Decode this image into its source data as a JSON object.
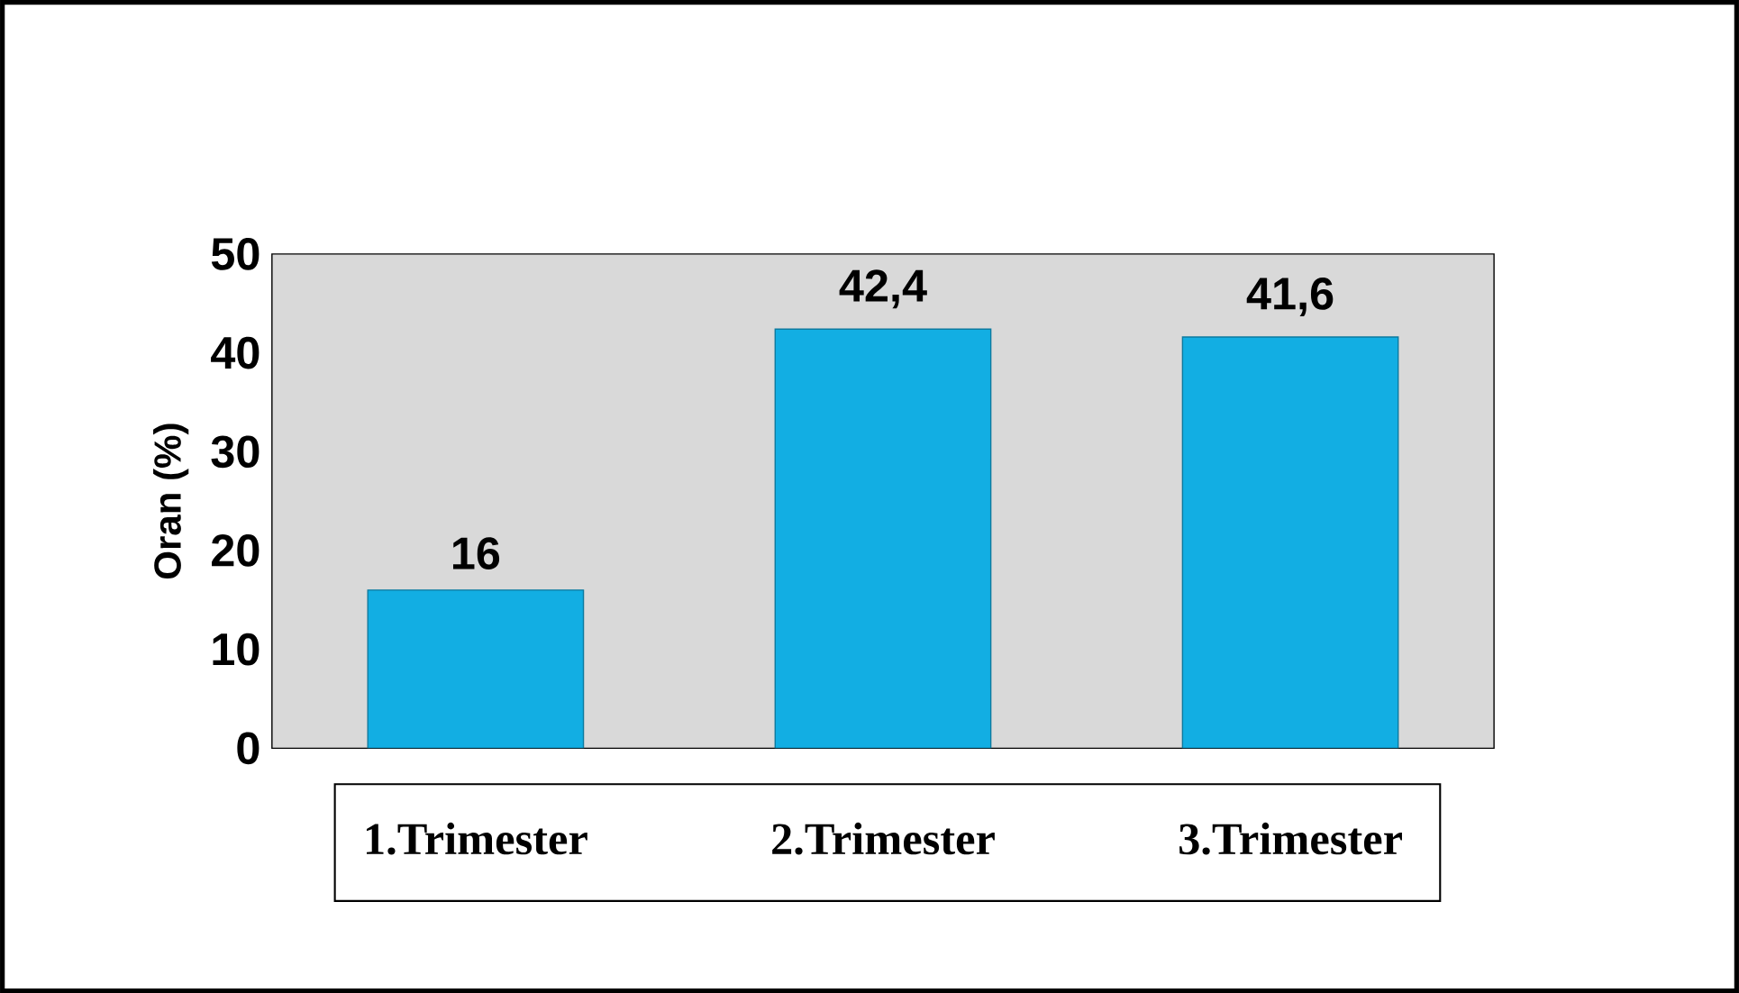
{
  "chart_data": {
    "type": "bar",
    "ylabel": "Oran (%)",
    "categories": [
      "1.Trimester",
      "2.Trimester",
      "3.Trimester"
    ],
    "values": [
      16,
      42.4,
      41.6
    ],
    "value_labels": [
      "16",
      "42,4",
      "41,6"
    ],
    "color": "#12aee3",
    "ylim": [
      0,
      50
    ],
    "yticks": [
      0,
      10,
      20,
      30,
      40,
      50
    ]
  }
}
